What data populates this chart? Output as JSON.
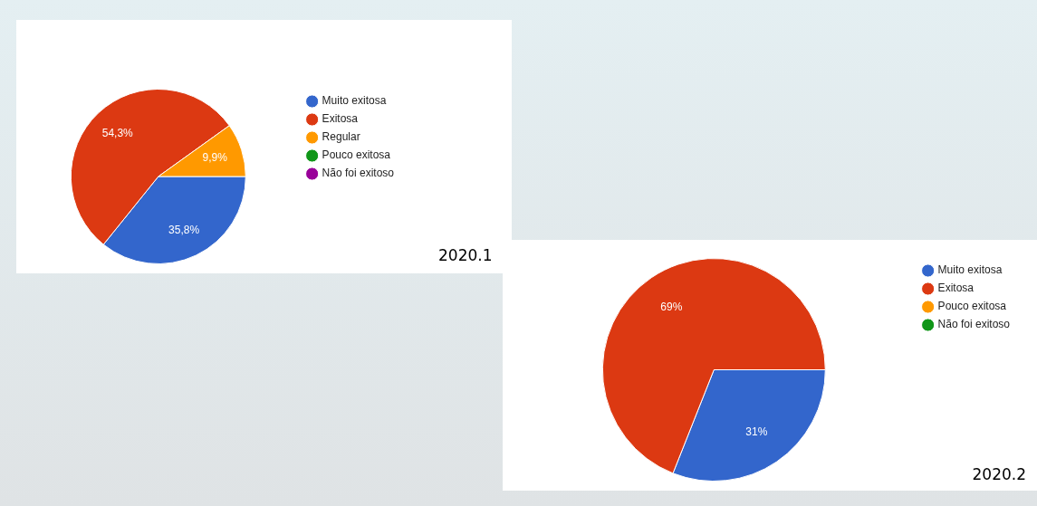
{
  "chart_data": [
    {
      "type": "pie",
      "title": "2020.1",
      "categories": [
        "Muito exitosa",
        "Exitosa",
        "Regular",
        "Pouco exitosa",
        "Não foi exitoso"
      ],
      "values": [
        35.8,
        54.3,
        9.9,
        0,
        0
      ],
      "value_labels": [
        "35,8%",
        "54,3%",
        "9,9%",
        null,
        null
      ],
      "colors": [
        "#3366cc",
        "#dc3912",
        "#ff9900",
        "#109618",
        "#990099"
      ],
      "legend": "right"
    },
    {
      "type": "pie",
      "title": "2020.2",
      "categories": [
        "Muito exitosa",
        "Exitosa",
        "Pouco exitosa",
        "Não foi exitoso"
      ],
      "values": [
        31,
        69,
        0,
        0
      ],
      "value_labels": [
        "31%",
        "69%",
        null,
        null
      ],
      "colors": [
        "#3366cc",
        "#dc3912",
        "#ff9900",
        "#109618"
      ],
      "legend": "right"
    }
  ]
}
